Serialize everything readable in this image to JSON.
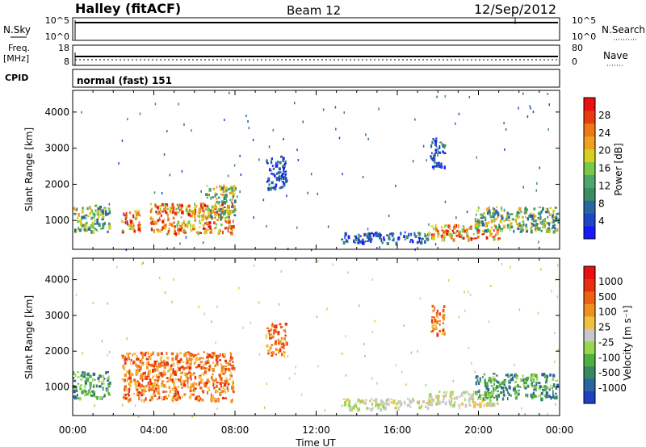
{
  "header": {
    "title": "Halley (fitACF)",
    "beam": "Beam 12",
    "date": "12/Sep/2012"
  },
  "strips": {
    "nsky_label": "N.Sky",
    "nsky_ticks": [
      "10^5",
      "10^0"
    ],
    "nsearch_label": "N.Search",
    "nsearch_ticks": [
      "10^5",
      "10^0"
    ],
    "freq_label": "Freq.",
    "freq_unit": "[MHz]",
    "freq_ticks": [
      "18",
      "8"
    ],
    "nave_label": "Nave",
    "nave_ticks": [
      "80",
      "0"
    ],
    "cpid_label": "CPID",
    "cpid_value": "normal (fast) 151"
  },
  "chart_data": [
    {
      "type": "heatmap",
      "panel": "power",
      "ylabel": "Slant Range [km]",
      "xlabel": "Time UT",
      "x_ticks": [
        "00:00",
        "04:00",
        "08:00",
        "12:00",
        "16:00",
        "20:00",
        "00:00"
      ],
      "y_ticks": [
        1000,
        2000,
        3000,
        4000
      ],
      "ylim": [
        200,
        4600
      ],
      "colorbar": {
        "label": "Power [dB]",
        "ticks": [
          "4",
          "8",
          "12",
          "16",
          "20",
          "24",
          "28"
        ],
        "colors": [
          "#1818ff",
          "#2046c8",
          "#2a66a0",
          "#3c8c64",
          "#4ea86a",
          "#78c84c",
          "#d8d020",
          "#f0a020",
          "#f07814",
          "#e83c10",
          "#e81010"
        ]
      },
      "echo_regions": [
        {
          "t_start": 0.0,
          "t_end": 1.8,
          "range_low": 700,
          "range_high": 1450,
          "level": "medium"
        },
        {
          "t_start": 2.4,
          "t_end": 3.3,
          "range_low": 700,
          "range_high": 1300,
          "level": "high"
        },
        {
          "t_start": 3.8,
          "t_end": 7.9,
          "range_low": 650,
          "range_high": 1500,
          "level": "high"
        },
        {
          "t_start": 6.5,
          "t_end": 8.0,
          "range_low": 1100,
          "range_high": 2000,
          "level": "medium"
        },
        {
          "t_start": 9.5,
          "t_end": 10.5,
          "range_low": 1900,
          "range_high": 2800,
          "level": "low"
        },
        {
          "t_start": 13.2,
          "t_end": 17.5,
          "range_low": 400,
          "range_high": 700,
          "level": "low"
        },
        {
          "t_start": 17.5,
          "t_end": 21.0,
          "range_low": 500,
          "range_high": 900,
          "level": "high"
        },
        {
          "t_start": 19.8,
          "t_end": 23.9,
          "range_low": 700,
          "range_high": 1400,
          "level": "medium"
        },
        {
          "t_start": 17.6,
          "t_end": 18.3,
          "range_low": 2500,
          "range_high": 3300,
          "level": "low"
        }
      ]
    },
    {
      "type": "heatmap",
      "panel": "velocity",
      "ylabel": "Slant Range [km]",
      "xlabel": "Time UT",
      "x_ticks": [
        "00:00",
        "04:00",
        "08:00",
        "12:00",
        "16:00",
        "20:00",
        "00:00"
      ],
      "y_ticks": [
        1000,
        2000,
        3000,
        4000
      ],
      "ylim": [
        200,
        4600
      ],
      "colorbar": {
        "label": "Velocity [m s⁻¹]",
        "ticks": [
          "1000",
          "500",
          "100",
          "25",
          "-25",
          "-100",
          "-500",
          "-1000"
        ],
        "colors": [
          "#2040c0",
          "#2c64a0",
          "#3a8860",
          "#50b040",
          "#98d850",
          "#c8c8c8",
          "#f0c040",
          "#f09020",
          "#f06014",
          "#e83010",
          "#e81010"
        ]
      },
      "echo_regions": [
        {
          "t_start": 0.0,
          "t_end": 1.8,
          "range_low": 700,
          "range_high": 1450,
          "level": "positive"
        },
        {
          "t_start": 2.4,
          "t_end": 7.9,
          "range_low": 650,
          "range_high": 2000,
          "level": "negative"
        },
        {
          "t_start": 9.5,
          "t_end": 10.5,
          "range_low": 1900,
          "range_high": 2800,
          "level": "negative"
        },
        {
          "t_start": 13.2,
          "t_end": 17.5,
          "range_low": 400,
          "range_high": 700,
          "level": "zero"
        },
        {
          "t_start": 17.5,
          "t_end": 21.0,
          "range_low": 500,
          "range_high": 900,
          "level": "zero"
        },
        {
          "t_start": 19.8,
          "t_end": 23.9,
          "range_low": 700,
          "range_high": 1400,
          "level": "positive"
        },
        {
          "t_start": 17.6,
          "t_end": 18.3,
          "range_low": 2500,
          "range_high": 3300,
          "level": "negative"
        }
      ]
    }
  ]
}
